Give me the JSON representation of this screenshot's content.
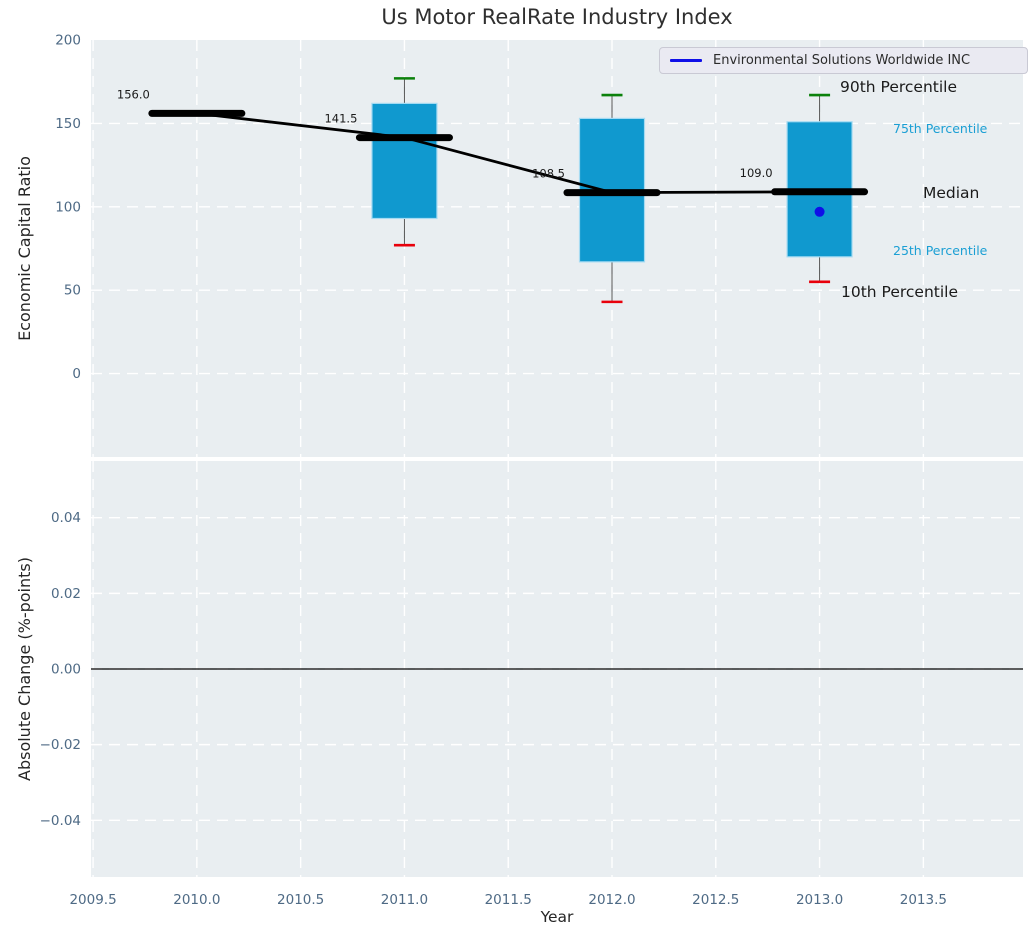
{
  "figure": {
    "title": "Us Motor RealRate Industry Index",
    "background": "#ffffff",
    "axes_background": "#e9eef1",
    "grid_color": "#ffffff",
    "tick_color": "#4e6a85",
    "text_color": "#1a1a1a"
  },
  "legend": {
    "label": "Environmental Solutions Worldwide INC",
    "line_color": "#0f0fe8"
  },
  "chart_data": [
    {
      "type": "bar",
      "subtype": "boxplot-percentile-timeseries",
      "title": "Us Motor RealRate Industry Index",
      "ylabel": "Economic Capital Ratio",
      "xlabel": "Year",
      "xlim": [
        2009.49,
        2013.98
      ],
      "ylim": [
        -50,
        200
      ],
      "xticks": [
        2009.5,
        2010.0,
        2010.5,
        2011.0,
        2011.5,
        2012.0,
        2012.5,
        2013.0,
        2013.5
      ],
      "yticks": [
        0,
        50,
        100,
        150,
        200
      ],
      "ytick_labels": [
        "0",
        "50",
        "100",
        "150",
        "200"
      ],
      "grid": true,
      "legend_position": "upper-right",
      "box_color": "#1099cf",
      "box_edge_color": "#a6dbf2",
      "whisker_color": "#555555",
      "p90_cap_color": "#0b810b",
      "p10_cap_color": "#e8000b",
      "median_color": "#000000",
      "boxes": [
        {
          "year": 2010,
          "p10": 156.0,
          "p25": 156.0,
          "median": 156.0,
          "p75": 156.0,
          "p90": 156.0,
          "label": "156.0"
        },
        {
          "year": 2011,
          "p10": 77.0,
          "p25": 93.0,
          "median": 141.5,
          "p75": 162.0,
          "p90": 177.0,
          "label": "141.5"
        },
        {
          "year": 2012,
          "p10": 43.0,
          "p25": 67.0,
          "median": 108.5,
          "p75": 153.0,
          "p90": 167.0,
          "label": "108.5"
        },
        {
          "year": 2013,
          "p10": 55.0,
          "p25": 70.0,
          "median": 109.0,
          "p75": 151.0,
          "p90": 167.0,
          "label": "109.0"
        }
      ],
      "median_trend": [
        [
          2010,
          156.0
        ],
        [
          2011,
          141.5
        ],
        [
          2012,
          108.5
        ],
        [
          2013,
          109.0
        ]
      ],
      "company_series": {
        "name": "Environmental Solutions Worldwide INC",
        "color": "#0f0fe8",
        "points": [
          [
            2013,
            97
          ]
        ]
      },
      "annotations": [
        {
          "text": "90th Percentile",
          "color": "#1a1a1a",
          "size": "large"
        },
        {
          "text": "75th Percentile",
          "color": "#1b9fd4",
          "size": "small"
        },
        {
          "text": "Median",
          "color": "#1a1a1a",
          "size": "large"
        },
        {
          "text": "25th Percentile",
          "color": "#1b9fd4",
          "size": "small"
        },
        {
          "text": "10th Percentile",
          "color": "#1a1a1a",
          "size": "large"
        }
      ]
    },
    {
      "type": "line",
      "ylabel": "Absolute Change (%-points)",
      "xlabel": "Year",
      "xlim": [
        2009.49,
        2013.98
      ],
      "ylim": [
        -0.055,
        0.055
      ],
      "xticks": [
        2009.5,
        2010.0,
        2010.5,
        2011.0,
        2011.5,
        2012.0,
        2012.5,
        2013.0,
        2013.5
      ],
      "xtick_labels": [
        "2009.5",
        "2010.0",
        "2010.5",
        "2011.0",
        "2011.5",
        "2012.0",
        "2012.5",
        "2013.0",
        "2013.5"
      ],
      "yticks": [
        0.04,
        0.02,
        0.0,
        -0.02,
        -0.04
      ],
      "ytick_labels": [
        "0.04",
        "0.02",
        "0.00",
        "−0.02",
        "−0.04"
      ],
      "grid": true,
      "zero_line": 0.0,
      "series": []
    }
  ]
}
